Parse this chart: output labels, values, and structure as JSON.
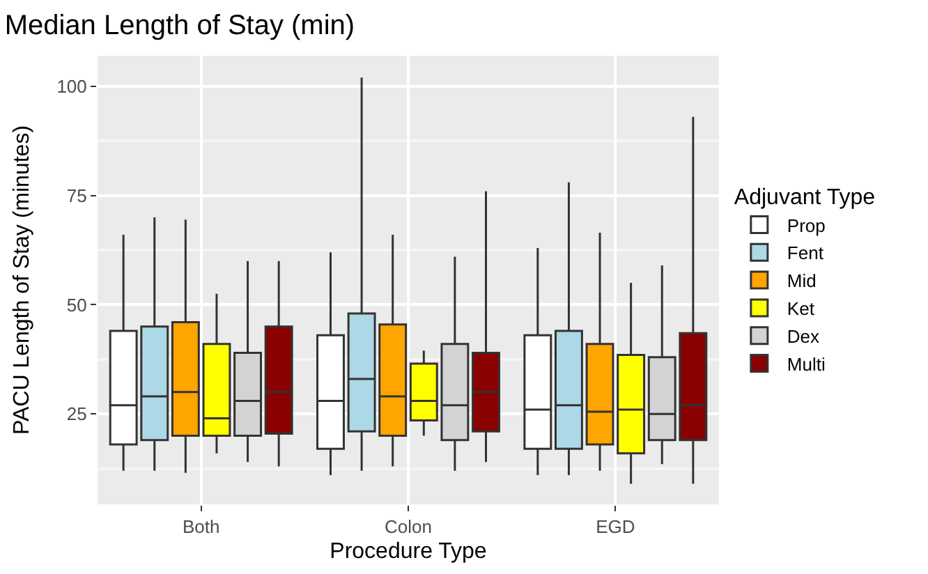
{
  "chart_data": {
    "type": "box",
    "title": "Median Length of Stay (min)",
    "xlabel": "Procedure Type",
    "ylabel": "PACU Length of Stay (minutes)",
    "legend_title": "Adjuvant Type",
    "legend": "right",
    "categories": [
      "Both",
      "Colon",
      "EGD"
    ],
    "ylim": [
      4.3,
      107
    ],
    "yticks": [
      25,
      50,
      75,
      100
    ],
    "grid": true,
    "series": [
      {
        "name": "Prop",
        "color": "#ffffff",
        "boxes": [
          {
            "low": 12,
            "q1": 18,
            "median": 27,
            "q3": 44,
            "high": 66
          },
          {
            "low": 11,
            "q1": 17,
            "median": 28,
            "q3": 43,
            "high": 62
          },
          {
            "low": 11,
            "q1": 17,
            "median": 26,
            "q3": 43,
            "high": 63
          }
        ]
      },
      {
        "name": "Fent",
        "color": "#add8e6",
        "boxes": [
          {
            "low": 12,
            "q1": 19,
            "median": 29,
            "q3": 45,
            "high": 70
          },
          {
            "low": 12,
            "q1": 21,
            "median": 33,
            "q3": 48,
            "high": 102
          },
          {
            "low": 11,
            "q1": 17,
            "median": 27,
            "q3": 44,
            "high": 78
          }
        ]
      },
      {
        "name": "Mid",
        "color": "#ffa500",
        "boxes": [
          {
            "low": 11.5,
            "q1": 20,
            "median": 30,
            "q3": 46,
            "high": 69.5
          },
          {
            "low": 13,
            "q1": 20,
            "median": 29,
            "q3": 45.5,
            "high": 66
          },
          {
            "low": 12,
            "q1": 18,
            "median": 25.5,
            "q3": 41,
            "high": 66.5
          }
        ]
      },
      {
        "name": "Ket",
        "color": "#ffff00",
        "boxes": [
          {
            "low": 16,
            "q1": 20,
            "median": 24,
            "q3": 41,
            "high": 52.5
          },
          {
            "low": 20,
            "q1": 23.5,
            "median": 28,
            "q3": 36.5,
            "high": 39.5
          },
          {
            "low": 9,
            "q1": 16,
            "median": 26,
            "q3": 38.5,
            "high": 55
          }
        ]
      },
      {
        "name": "Dex",
        "color": "#d3d3d3",
        "boxes": [
          {
            "low": 14,
            "q1": 20,
            "median": 28,
            "q3": 39,
            "high": 60
          },
          {
            "low": 12,
            "q1": 19,
            "median": 27,
            "q3": 41,
            "high": 61
          },
          {
            "low": 13.5,
            "q1": 19,
            "median": 25,
            "q3": 38,
            "high": 59
          }
        ]
      },
      {
        "name": "Multi",
        "color": "#8b0000",
        "boxes": [
          {
            "low": 13,
            "q1": 20.5,
            "median": 30,
            "q3": 45,
            "high": 60
          },
          {
            "low": 14,
            "q1": 21,
            "median": 30,
            "q3": 39,
            "high": 76
          },
          {
            "low": 9,
            "q1": 19,
            "median": 27,
            "q3": 43.5,
            "high": 93
          }
        ]
      }
    ]
  }
}
